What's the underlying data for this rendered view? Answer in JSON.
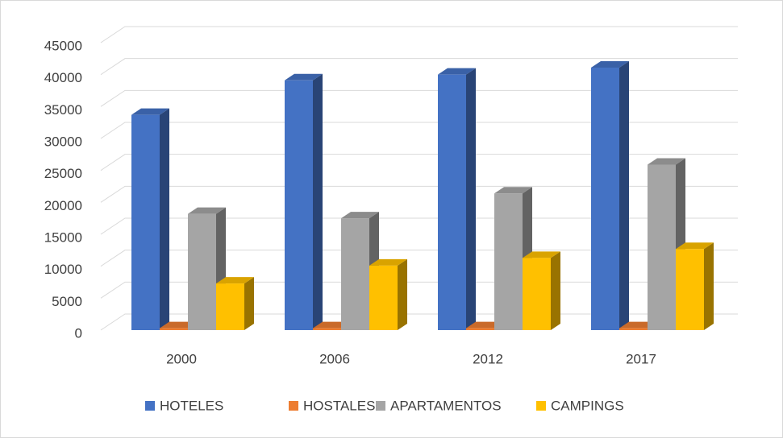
{
  "chart_data": {
    "type": "bar3d",
    "categories": [
      "2000",
      "2006",
      "2012",
      "2017"
    ],
    "series": [
      {
        "name": "HOTELES",
        "color": "#4472c4",
        "values": [
          33700,
          39100,
          40000,
          41100
        ]
      },
      {
        "name": "HOSTALES",
        "color": "#ed7d31",
        "values": [
          300,
          300,
          300,
          300
        ]
      },
      {
        "name": "APARTAMENTOS",
        "color": "#a5a5a5",
        "values": [
          18200,
          17500,
          21400,
          25900
        ]
      },
      {
        "name": "CAMPINGS",
        "color": "#ffc000",
        "values": [
          7300,
          10100,
          11300,
          12700
        ]
      }
    ],
    "ylim": [
      0,
      45000
    ],
    "yticks": [
      0,
      5000,
      10000,
      15000,
      20000,
      25000,
      30000,
      35000,
      40000,
      45000
    ],
    "grid": true,
    "legend": "bottom"
  }
}
